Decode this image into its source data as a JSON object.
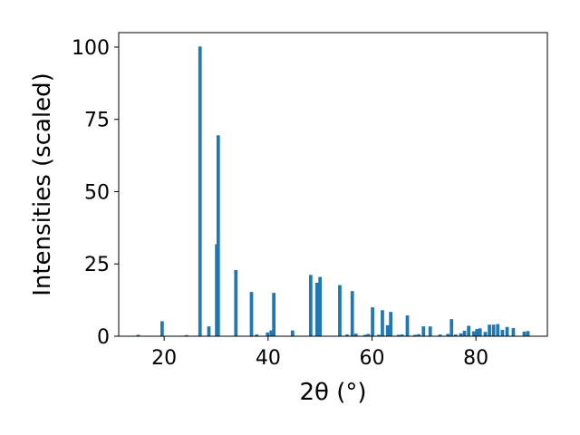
{
  "chart_data": {
    "type": "bar",
    "xlabel": "2θ (°)",
    "ylabel": "Intensities (scaled)",
    "xlim": [
      11.25,
      93.75
    ],
    "ylim": [
      0,
      105
    ],
    "grid": false,
    "bar_color": "#1f77b4",
    "bar_width": 0.65,
    "x_ticks": [
      20,
      40,
      60,
      80
    ],
    "y_ticks": [
      0,
      25,
      50,
      75,
      100
    ],
    "x_tick_labels": [
      "20",
      "40",
      "60",
      "80"
    ],
    "y_tick_labels": [
      "0",
      "25",
      "50",
      "75",
      "100"
    ],
    "x": [
      15.0,
      19.6,
      24.3,
      26.9,
      28.6,
      30.1,
      30.4,
      33.8,
      36.8,
      37.8,
      39.9,
      40.6,
      41.1,
      44.7,
      48.2,
      49.4,
      50.0,
      53.8,
      55.2,
      56.2,
      56.9,
      58.7,
      59.3,
      60.1,
      61.3,
      62.0,
      63.0,
      63.6,
      65.1,
      65.8,
      66.8,
      68.3,
      69.0,
      69.9,
      71.2,
      73.1,
      74.6,
      75.3,
      76.1,
      77.1,
      77.8,
      78.6,
      79.6,
      80.2,
      80.8,
      81.8,
      82.6,
      83.4,
      84.2,
      85.1,
      86.0,
      87.2,
      89.3,
      90.0
    ],
    "values": [
      0.5,
      5.2,
      0.4,
      100.2,
      3.4,
      31.8,
      69.5,
      22.9,
      15.3,
      0.6,
      1.3,
      2.0,
      15.0,
      2.0,
      21.2,
      18.5,
      20.5,
      17.7,
      0.6,
      15.6,
      0.9,
      0.5,
      0.8,
      10.0,
      0.5,
      9.0,
      3.8,
      8.4,
      0.5,
      0.6,
      7.2,
      0.5,
      0.7,
      3.4,
      3.4,
      0.6,
      0.8,
      5.9,
      0.6,
      1.0,
      1.9,
      3.6,
      1.7,
      2.5,
      2.7,
      1.5,
      4.0,
      4.0,
      4.2,
      2.2,
      3.2,
      2.8,
      1.6,
      1.8
    ]
  }
}
